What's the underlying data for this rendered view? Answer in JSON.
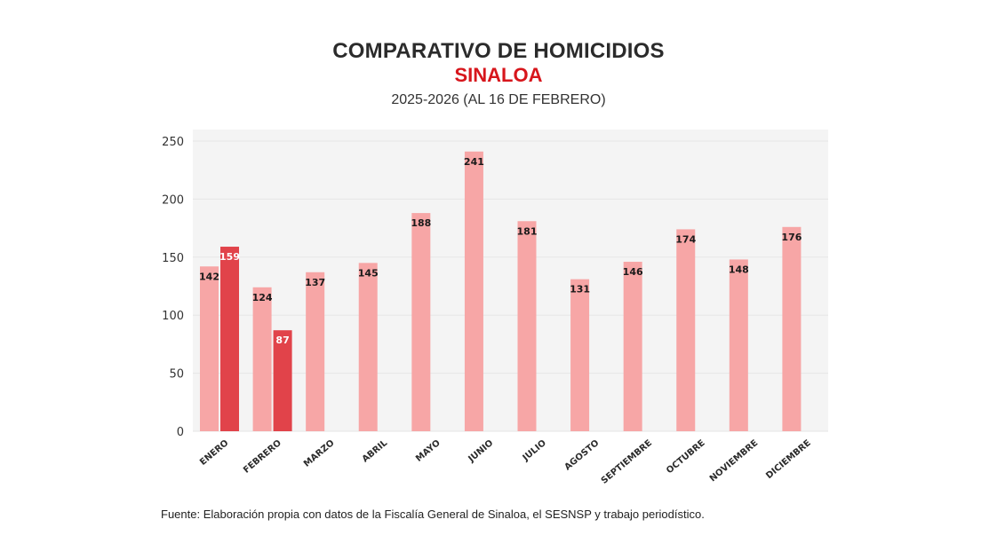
{
  "chart_data": {
    "type": "bar",
    "title": "COMPARATIVO DE HOMICIDIOS",
    "subtitle": "SINALOA",
    "period": "2025-2026 (AL 16 DE FEBRERO)",
    "categories": [
      "ENERO",
      "FEBRERO",
      "MARZO",
      "ABRIL",
      "MAYO",
      "JUNIO",
      "JULIO",
      "AGOSTO",
      "SEPTIEMBRE",
      "OCTUBRE",
      "NOVIEMBRE",
      "DICIEMBRE"
    ],
    "series": [
      {
        "values": [
          142,
          124,
          137,
          145,
          188,
          241,
          181,
          131,
          146,
          174,
          148,
          176
        ],
        "color": "#f7a6a6"
      },
      {
        "values": [
          159,
          87,
          null,
          null,
          null,
          null,
          null,
          null,
          null,
          null,
          null,
          null
        ],
        "color": "#e1434a"
      }
    ],
    "yticks": [
      0,
      50,
      100,
      150,
      200,
      250
    ],
    "ylim": [
      0,
      250
    ],
    "grid": true,
    "plot_background": "#f4f4f4"
  },
  "source": "Fuente: Elaboración propia con datos de la Fiscalía General de Sinaloa, el SESNSP y trabajo periodístico."
}
